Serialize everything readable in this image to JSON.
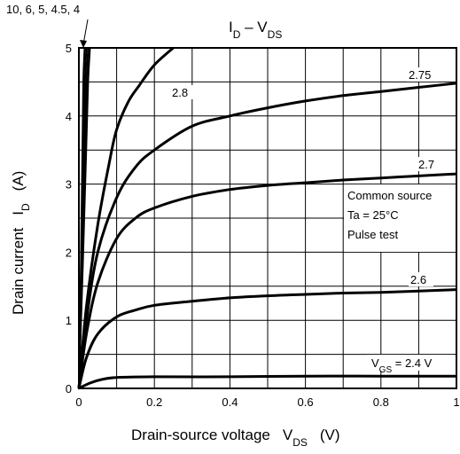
{
  "chart_data": {
    "type": "line",
    "title_main": "I",
    "title_sub1": "D",
    "title_mid": " – V",
    "title_sub2": "DS",
    "xlabel": "Drain-source voltage",
    "xlabel_symbol": "V",
    "xlabel_sub": "DS",
    "xlabel_unit": "(V)",
    "ylabel": "Drain current",
    "ylabel_symbol": "I",
    "ylabel_sub": "D",
    "ylabel_unit": "(A)",
    "xlim": [
      0,
      1
    ],
    "ylim": [
      0,
      5
    ],
    "xticks": [
      "0",
      "0.2",
      "0.4",
      "0.6",
      "0.8",
      "1"
    ],
    "yticks": [
      "0",
      "1",
      "2",
      "3",
      "4",
      "5"
    ],
    "grid": true,
    "annotation": [
      "Common source",
      "Ta = 25°C",
      "Pulse test"
    ],
    "steep_label": "10, 6, 5, 4.5, 4",
    "vgs_prefix": "V",
    "vgs_sub": "GS",
    "series": [
      {
        "name": "10, 6, 5, 4.5, 4",
        "x": [
          0,
          0.007,
          0.012,
          0.016,
          0.02
        ],
        "y": [
          0,
          1.8,
          3.3,
          4.5,
          5.0
        ]
      },
      {
        "name": "2.8",
        "x": [
          0,
          0.02,
          0.05,
          0.08,
          0.1,
          0.13,
          0.16,
          0.2,
          0.25
        ],
        "y": [
          0,
          1.2,
          2.4,
          3.3,
          3.8,
          4.2,
          4.45,
          4.75,
          5.0
        ]
      },
      {
        "name": "2.75",
        "x": [
          0,
          0.02,
          0.05,
          0.1,
          0.15,
          0.2,
          0.3,
          0.4,
          0.5,
          0.6,
          0.7,
          0.8,
          0.9,
          1.0
        ],
        "y": [
          0,
          1.0,
          2.0,
          2.8,
          3.25,
          3.5,
          3.85,
          4.0,
          4.12,
          4.22,
          4.3,
          4.36,
          4.42,
          4.48
        ]
      },
      {
        "name": "2.7",
        "x": [
          0,
          0.02,
          0.05,
          0.1,
          0.15,
          0.2,
          0.3,
          0.4,
          0.5,
          0.6,
          0.7,
          0.8,
          0.9,
          1.0
        ],
        "y": [
          0,
          0.8,
          1.55,
          2.2,
          2.5,
          2.65,
          2.82,
          2.92,
          2.98,
          3.02,
          3.06,
          3.09,
          3.12,
          3.15
        ]
      },
      {
        "name": "2.6",
        "x": [
          0,
          0.02,
          0.05,
          0.1,
          0.15,
          0.2,
          0.3,
          0.4,
          0.5,
          0.6,
          0.7,
          0.8,
          0.9,
          1.0
        ],
        "y": [
          0,
          0.45,
          0.8,
          1.05,
          1.15,
          1.22,
          1.28,
          1.33,
          1.36,
          1.38,
          1.4,
          1.41,
          1.43,
          1.45
        ]
      },
      {
        "name": "2.4 V",
        "x": [
          0,
          0.03,
          0.06,
          0.1,
          0.2,
          0.4,
          0.6,
          0.8,
          1.0
        ],
        "y": [
          0,
          0.08,
          0.13,
          0.16,
          0.17,
          0.17,
          0.18,
          0.18,
          0.18
        ]
      }
    ]
  }
}
